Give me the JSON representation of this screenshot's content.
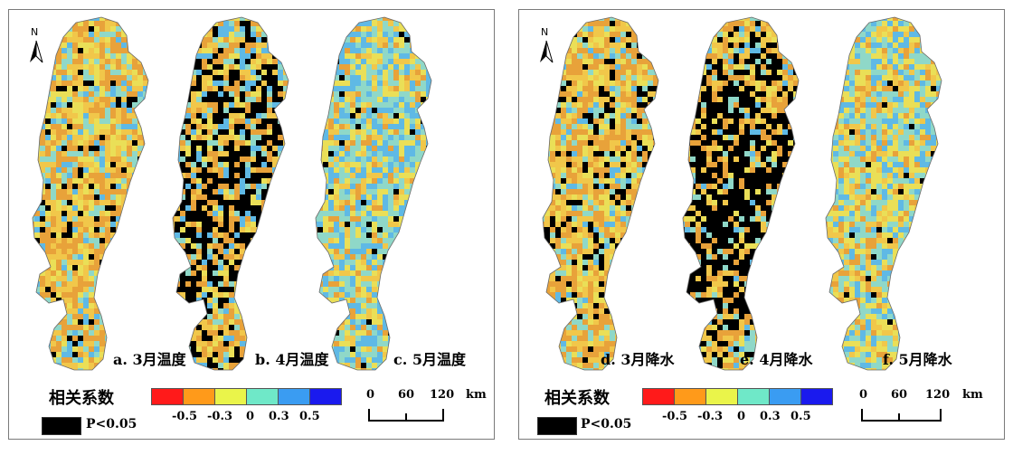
{
  "legend": {
    "title": "相关系数",
    "colors": [
      "#ff1a1a",
      "#ff9a1a",
      "#eaf44a",
      "#6fe8c8",
      "#3a9cf2",
      "#1a1aee"
    ],
    "ticks": [
      "-0.5",
      "-0.3",
      "0",
      "0.3",
      "0.5"
    ],
    "significance_label": "P<0.05",
    "significance_color": "#000000"
  },
  "scale": {
    "ticks": [
      "0",
      "60",
      "120"
    ],
    "unit": "km"
  },
  "north_arrow": {
    "label": "N",
    "icon": "north-arrow-icon"
  },
  "panels": [
    {
      "maps": [
        {
          "label": "a. 3月温度",
          "palette": [
            "#e8a23a",
            "#f1c74a",
            "#eadf57",
            "#8fd8c8",
            "#5fb9e5"
          ],
          "weights": [
            30,
            24,
            20,
            16,
            10
          ],
          "significant_fraction": 0.05
        },
        {
          "label": "b. 4月温度",
          "palette": [
            "#e8a23a",
            "#f1c74a",
            "#eadf57",
            "#8fd8c8",
            "#5fb9e5"
          ],
          "weights": [
            34,
            20,
            16,
            14,
            16
          ],
          "significant_fraction": 0.24
        },
        {
          "label": "c. 5月温度",
          "palette": [
            "#e8a23a",
            "#f1c74a",
            "#eadf57",
            "#8fd8c8",
            "#5fb9e5"
          ],
          "weights": [
            10,
            14,
            22,
            30,
            24
          ],
          "significant_fraction": 0.02
        }
      ]
    },
    {
      "maps": [
        {
          "label": "d. 3月降水",
          "palette": [
            "#e8a23a",
            "#f1c74a",
            "#eadf57",
            "#8fd8c8",
            "#5fb9e5"
          ],
          "weights": [
            36,
            26,
            18,
            14,
            6
          ],
          "significant_fraction": 0.08
        },
        {
          "label": "e. 4月降水",
          "palette": [
            "#e8a23a",
            "#f1c74a",
            "#eadf57",
            "#8fd8c8",
            "#5fb9e5"
          ],
          "weights": [
            38,
            24,
            16,
            14,
            8
          ],
          "significant_fraction": 0.3
        },
        {
          "label": "f. 5月降水",
          "palette": [
            "#e8a23a",
            "#f1c74a",
            "#eadf57",
            "#8fd8c8",
            "#5fb9e5"
          ],
          "weights": [
            14,
            16,
            24,
            26,
            20
          ],
          "significant_fraction": 0.02
        }
      ]
    }
  ]
}
